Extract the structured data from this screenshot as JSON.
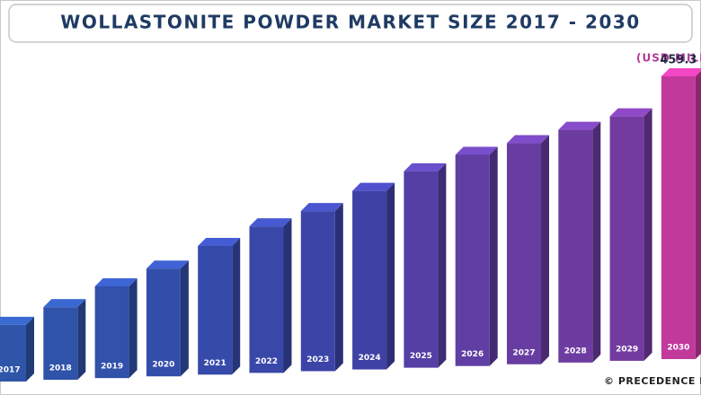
{
  "chart_data": {
    "type": "bar3d",
    "title": "WOLLASTONITE POWDER MARKET SIZE 2017 - 2030",
    "unit_label": "(USD MILLION)",
    "source": "© PRECEDENCE RESEARCH",
    "categories": [
      "2017",
      "2018",
      "2019",
      "2020",
      "2021",
      "2022",
      "2023",
      "2024",
      "2025",
      "2026",
      "2027",
      "2028",
      "2029",
      "2030"
    ],
    "values": [
      92,
      118,
      149,
      175,
      209,
      238,
      260,
      290,
      319,
      343,
      359,
      378,
      397,
      459.3
    ],
    "colors": [
      "#2e55a8",
      "#2f53a9",
      "#3151aa",
      "#334eaa",
      "#364aaa",
      "#3947a9",
      "#3c44a7",
      "#4041a5",
      "#553fa4",
      "#603ea3",
      "#673da2",
      "#6d3ca1",
      "#733ba0",
      "#c2399c"
    ],
    "labeled_index": 13
  }
}
